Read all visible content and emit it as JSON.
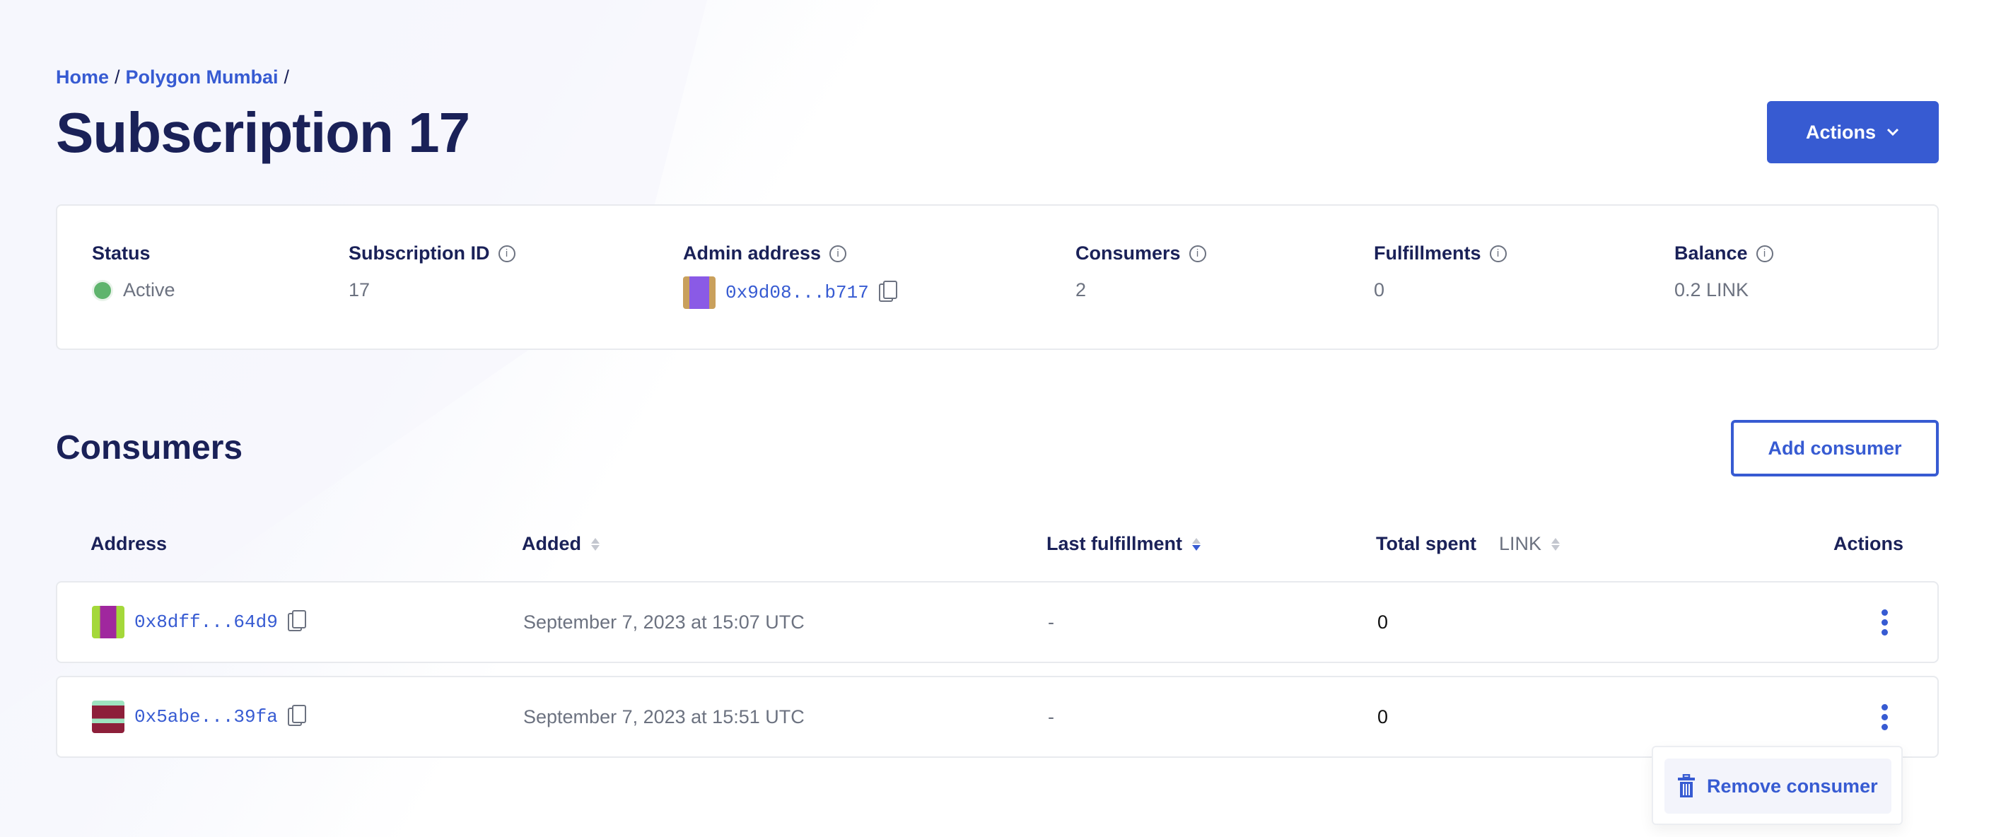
{
  "breadcrumb": [
    {
      "label": "Home"
    },
    {
      "label": "Polygon Mumbai"
    }
  ],
  "breadcrumb_sep": "/",
  "title": "Subscription 17",
  "actions_button": {
    "label": "Actions",
    "icon": "chevron-down-icon"
  },
  "summary": {
    "status": {
      "label": "Status",
      "value": "Active",
      "color": "#5fb46d"
    },
    "subscription_id": {
      "label": "Subscription ID",
      "value": "17"
    },
    "admin_address": {
      "label": "Admin address",
      "value": "0x9d08...b717"
    },
    "consumers": {
      "label": "Consumers",
      "value": "2"
    },
    "fulfillments": {
      "label": "Fulfillments",
      "value": "0"
    },
    "balance": {
      "label": "Balance",
      "value": "0.2 LINK"
    }
  },
  "consumers_section": {
    "title": "Consumers",
    "add_button": "Add consumer"
  },
  "table": {
    "columns": {
      "address": "Address",
      "added": "Added",
      "last_fulfillment": "Last fulfillment",
      "total_spent": "Total spent",
      "total_spent_unit": "LINK",
      "actions": "Actions"
    },
    "rows": [
      {
        "address": "0x8dff...64d9",
        "added": "September 7, 2023 at 15:07 UTC",
        "last_fulfillment": "-",
        "total_spent": "0"
      },
      {
        "address": "0x5abe...39fa",
        "added": "September 7, 2023 at 15:51 UTC",
        "last_fulfillment": "-",
        "total_spent": "0"
      }
    ]
  },
  "row_menu": {
    "items": [
      {
        "label": "Remove consumer",
        "icon": "trash-icon"
      }
    ]
  },
  "colors": {
    "accent": "#375bd2",
    "heading": "#1a2158",
    "muted": "#6c7280"
  }
}
